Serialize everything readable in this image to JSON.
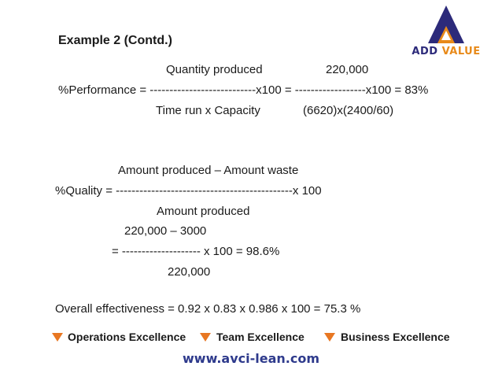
{
  "logo": {
    "part1": "ADD",
    "part2": "VALUE"
  },
  "title": "Example 2 (Contd.)",
  "performance": {
    "numerator_label": "Quantity produced",
    "numerator_value": "220,000",
    "formula_line": "%Performance = ---------------------------x100 = ------------------x100 = 83%",
    "denominator_label": "Time run x Capacity",
    "denominator_value": "(6620)x(2400/60)"
  },
  "quality": {
    "numerator_label": "Amount produced – Amount waste",
    "formula_line": "%Quality = ---------------------------------------------x 100",
    "denominator_label": "Amount produced",
    "calc_numerator": "220,000 – 3000",
    "calc_line": "= -------------------- x 100 = 98.6%",
    "calc_denominator": "220,000"
  },
  "overall": "Overall effectiveness = 0.92 x 0.83 x 0.986 x 100 = 75.3 %",
  "footer": {
    "items": [
      "Operations Excellence",
      "Team Excellence",
      "Business Excellence"
    ],
    "url": "www.avci-lean.com"
  },
  "colors": {
    "accent_orange": "#e87722",
    "brand_blue": "#2e3a8c",
    "logo_navy": "#2c2a7a"
  }
}
